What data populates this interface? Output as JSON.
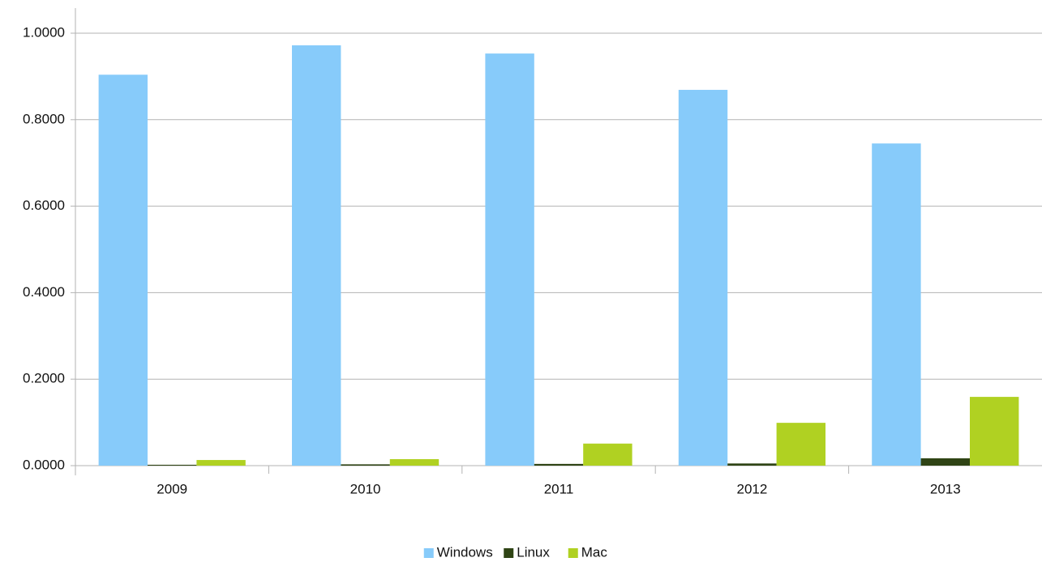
{
  "chart_data": {
    "type": "bar",
    "categories": [
      "2009",
      "2010",
      "2011",
      "2012",
      "2013"
    ],
    "series": [
      {
        "name": "Windows",
        "color": "#87cbfa",
        "values": [
          0.904,
          0.972,
          0.953,
          0.869,
          0.745
        ]
      },
      {
        "name": "Linux",
        "color": "#2f4415",
        "values": [
          0.002,
          0.003,
          0.004,
          0.005,
          0.017
        ]
      },
      {
        "name": "Mac",
        "color": "#b0d122",
        "values": [
          0.013,
          0.015,
          0.051,
          0.099,
          0.159
        ]
      }
    ],
    "ylim": [
      0,
      1.0
    ],
    "yticks": [
      {
        "value": 0,
        "label": "0.0000"
      },
      {
        "value": 0.2,
        "label": "0.2000"
      },
      {
        "value": 0.4,
        "label": "0.4000"
      },
      {
        "value": 0.6,
        "label": "0.6000"
      },
      {
        "value": 0.8,
        "label": "0.8000"
      },
      {
        "value": 1.0,
        "label": "1.0000"
      }
    ],
    "grid": true,
    "legend": "bottom"
  }
}
